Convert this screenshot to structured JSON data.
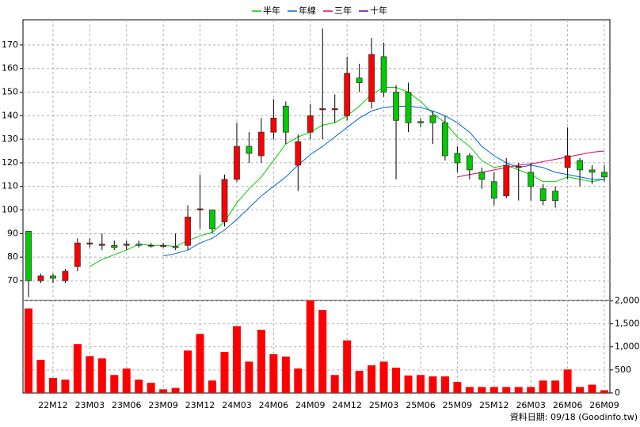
{
  "chart_data": {
    "type": "candlestick",
    "legend": [
      {
        "name": "半年",
        "color": "#00cc00"
      },
      {
        "name": "年線",
        "color": "#0066dd"
      },
      {
        "name": "三年",
        "color": "#dd0066"
      },
      {
        "name": "十年",
        "color": "#660099"
      }
    ],
    "categories": [
      null,
      null,
      "22M12",
      null,
      null,
      "23M03",
      null,
      null,
      "23M06",
      null,
      null,
      "23M09",
      null,
      null,
      "23M12",
      null,
      null,
      "24M03",
      null,
      null,
      "24M06",
      null,
      null,
      "24M09",
      null,
      null,
      "24M12",
      null,
      null,
      "25M03",
      null,
      null,
      "25M06",
      null,
      null,
      "25M09",
      null,
      null,
      "25M12",
      null,
      null,
      "26M03",
      null,
      null,
      "26M06",
      null,
      null,
      "26M09"
    ],
    "open": [
      91,
      70,
      72,
      70,
      76,
      85.5,
      85,
      85,
      85,
      85.5,
      85,
      84.5,
      84.5,
      85,
      100,
      100,
      95,
      113,
      127,
      123,
      133,
      144,
      119,
      133,
      142.5,
      142.5,
      140,
      156,
      146,
      165,
      150,
      150,
      137.5,
      140,
      137,
      124,
      123,
      116,
      112,
      106,
      118,
      116,
      109,
      108,
      118,
      121,
      117,
      116
    ],
    "high": [
      91,
      73,
      73,
      75,
      88,
      88,
      90,
      87,
      87,
      87,
      86,
      86,
      90,
      102,
      115,
      100,
      115,
      137,
      133,
      139,
      147,
      146,
      132,
      145,
      177,
      149,
      165,
      162,
      173,
      171,
      153,
      154,
      139,
      142,
      140,
      127,
      124,
      118,
      116,
      122,
      120,
      120,
      111,
      110,
      135,
      122,
      119,
      119
    ],
    "low": [
      63,
      69,
      69,
      69,
      74,
      84,
      83,
      83,
      83,
      84,
      84,
      84,
      83,
      83,
      92,
      90,
      93,
      112,
      120,
      120,
      130,
      128,
      108,
      130,
      130,
      137,
      138,
      150,
      143,
      148,
      113,
      133,
      135,
      128,
      121,
      116,
      113,
      109,
      102,
      105,
      104,
      104,
      102,
      101,
      113,
      110,
      111,
      112
    ],
    "close": [
      70,
      72,
      71,
      74,
      86,
      86,
      85.5,
      84,
      85.5,
      85,
      85,
      85,
      84,
      97,
      100.5,
      92,
      113,
      127,
      124,
      133,
      139,
      133,
      129,
      140,
      143,
      143,
      158,
      154,
      166,
      150,
      138,
      137,
      137,
      137,
      123,
      120,
      117,
      113,
      105,
      119,
      118.5,
      110,
      104,
      104,
      123,
      117,
      116,
      114
    ],
    "up_color": "#ff0000",
    "down_color": "#00cc00",
    "ylim": [
      61.6,
      180.7
    ],
    "yticks": [
      70,
      80,
      90,
      100,
      110,
      120,
      130,
      140,
      150,
      160,
      170
    ],
    "series": [
      {
        "name": "半年",
        "color": "#00cc00",
        "values": [
          null,
          null,
          null,
          null,
          null,
          76,
          79,
          81,
          83,
          85.5,
          85,
          85,
          84.5,
          87,
          89,
          90.5,
          95,
          103,
          109,
          114,
          121,
          128,
          131,
          133,
          136,
          137,
          140,
          144,
          149,
          152,
          152,
          150,
          146,
          141,
          137,
          131,
          127,
          121,
          118,
          119,
          117,
          115,
          112,
          112,
          114,
          113,
          112,
          113
        ]
      },
      {
        "name": "年線",
        "color": "#0066dd",
        "values": [
          null,
          null,
          null,
          null,
          null,
          null,
          null,
          null,
          null,
          null,
          null,
          80.5,
          81.5,
          83,
          86,
          88,
          91.5,
          96,
          101,
          106,
          110,
          114,
          119,
          123.5,
          127,
          131,
          135,
          139,
          142,
          143.5,
          144,
          144,
          143.5,
          142,
          140,
          137,
          133,
          127,
          123,
          120,
          118,
          119,
          118,
          116,
          115,
          114,
          113,
          113
        ]
      },
      {
        "name": "三年",
        "color": "#dd0066",
        "values": [
          null,
          null,
          null,
          null,
          null,
          null,
          null,
          null,
          null,
          null,
          null,
          null,
          null,
          null,
          null,
          null,
          null,
          null,
          null,
          null,
          null,
          null,
          null,
          null,
          null,
          null,
          null,
          null,
          null,
          null,
          null,
          null,
          null,
          null,
          null,
          114,
          115,
          116,
          117,
          118,
          119,
          119.5,
          120.5,
          121.5,
          122.5,
          123.5,
          124.5,
          125
        ]
      }
    ],
    "volume": {
      "color": "#ff0000",
      "values": [
        1830,
        720,
        325,
        290,
        1060,
        800,
        750,
        390,
        530,
        290,
        220,
        80,
        110,
        920,
        1280,
        270,
        890,
        1450,
        680,
        1370,
        840,
        790,
        530,
        2010,
        1800,
        390,
        1140,
        480,
        600,
        680,
        550,
        380,
        390,
        360,
        360,
        240,
        130,
        130,
        130,
        130,
        130,
        130,
        270,
        270,
        510,
        130,
        180,
        60
      ],
      "ylim": [
        0,
        2040
      ],
      "yticks": [
        0,
        {
          "value": 500,
          "label": "500"
        },
        {
          "value": 1000,
          "label": "1,000"
        },
        {
          "value": 1500,
          "label": "1,500"
        },
        {
          "value": 2000,
          "label": "2,000"
        }
      ]
    },
    "footer": "資料日期: 09/18  (Goodinfo.tw)"
  }
}
